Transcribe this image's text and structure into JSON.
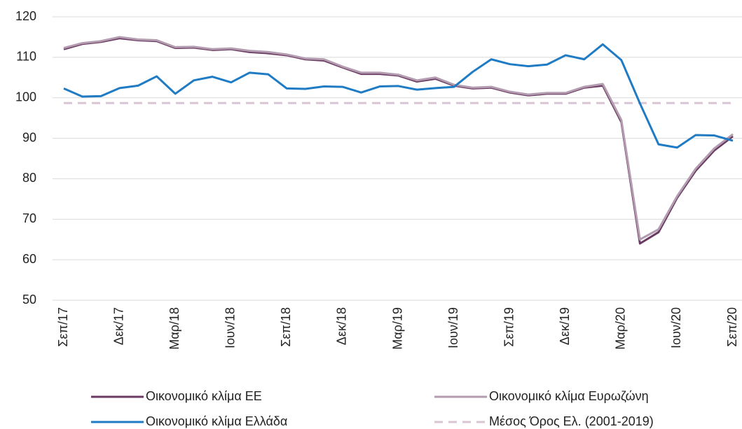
{
  "chart_data": {
    "type": "line",
    "categories": [
      "Σεπ/17",
      null,
      null,
      "Δεκ/17",
      null,
      null,
      "Μαρ/18",
      null,
      null,
      "Ιουν/18",
      null,
      null,
      "Σεπ/18",
      null,
      null,
      "Δεκ/18",
      null,
      null,
      "Μαρ/19",
      null,
      null,
      "Ιουν/19",
      null,
      null,
      "Σεπ/19",
      null,
      null,
      "Δεκ/19",
      null,
      null,
      "Μαρ/20",
      null,
      null,
      "Ιουν/20",
      null,
      null,
      "Σεπ/20"
    ],
    "series": [
      {
        "name": "Οικονομικό κλίμα ΕΕ",
        "color": "#6b3a62",
        "values": [
          112,
          113.3,
          113.8,
          114.7,
          114.2,
          114,
          112.3,
          112.4,
          111.8,
          112,
          111.3,
          111,
          110.5,
          109.5,
          109.2,
          107.5,
          105.9,
          105.9,
          105.5,
          104,
          104.7,
          103,
          102.3,
          102.5,
          101.3,
          100.6,
          101,
          101,
          102.5,
          103,
          94,
          64,
          66.8,
          75.3,
          82,
          87,
          90.5
        ]
      },
      {
        "name": "Οικονομικό κλίμα Ευρωζώνη",
        "color": "#b39cb0",
        "values": [
          112.3,
          113.5,
          114,
          115,
          114.4,
          114.2,
          112.5,
          112.6,
          112,
          112.2,
          111.6,
          111.3,
          110.7,
          109.7,
          109.5,
          107.7,
          106.2,
          106.2,
          105.7,
          104.3,
          105,
          103.2,
          102.5,
          102.7,
          101.5,
          100.8,
          101.2,
          101.2,
          102.7,
          103.4,
          94.5,
          65,
          67.5,
          75.7,
          82.5,
          87.5,
          91
        ]
      },
      {
        "name": "Οικονομικό κλίμα Ελλάδα",
        "color": "#1f7bc3",
        "values": [
          102.3,
          100.3,
          100.4,
          102.4,
          103,
          105.3,
          101,
          104.3,
          105.2,
          103.8,
          106.2,
          105.8,
          102.3,
          102.2,
          102.8,
          102.7,
          101.3,
          102.8,
          102.9,
          102,
          102.4,
          102.7,
          106.4,
          109.5,
          108.3,
          107.8,
          108.2,
          110.5,
          109.5,
          113.2,
          109.3,
          98.6,
          88.5,
          87.7,
          90.8,
          90.7,
          89.4
        ]
      },
      {
        "name": "Μέσος Όρος Ελ. (2001-2019)",
        "color": "#d8c6d5",
        "dashed": true,
        "values": [
          98.7,
          98.7,
          98.7,
          98.7,
          98.7,
          98.7,
          98.7,
          98.7,
          98.7,
          98.7,
          98.7,
          98.7,
          98.7,
          98.7,
          98.7,
          98.7,
          98.7,
          98.7,
          98.7,
          98.7,
          98.7,
          98.7,
          98.7,
          98.7,
          98.7,
          98.7,
          98.7,
          98.7,
          98.7,
          98.7,
          98.7,
          98.7,
          98.7,
          98.7,
          98.7,
          98.7,
          98.7
        ]
      }
    ],
    "ylim": [
      50,
      120
    ],
    "yticks": [
      50,
      60,
      70,
      80,
      90,
      100,
      110,
      120
    ],
    "grid": true
  }
}
